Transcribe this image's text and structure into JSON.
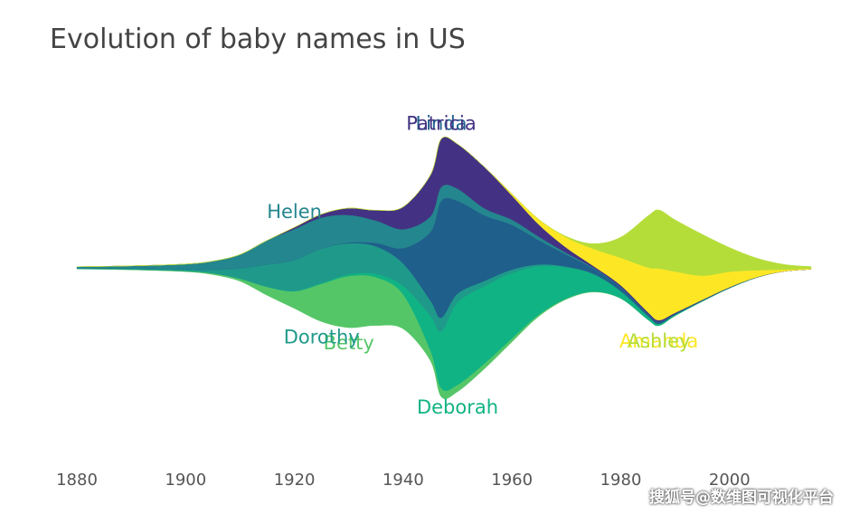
{
  "watermark": "搜狐号@数维图可视化平台",
  "chart_data": {
    "type": "area",
    "subtype": "streamgraph",
    "title": "Evolution of baby names in US",
    "xlabel": "",
    "ylabel": "",
    "x_ticks": [
      1880,
      1900,
      1920,
      1940,
      1960,
      1980,
      2000
    ],
    "xlim": [
      1880,
      2015
    ],
    "x": [
      1880,
      1890,
      1900,
      1905,
      1910,
      1915,
      1920,
      1925,
      1930,
      1935,
      1940,
      1945,
      1947,
      1950,
      1955,
      1960,
      1965,
      1970,
      1975,
      1980,
      1985,
      1987,
      1990,
      1995,
      2000,
      2005,
      2010,
      2015
    ],
    "series": [
      {
        "name": "Betty",
        "color": "#55c667",
        "label_pos": "below",
        "values": [
          0.2,
          0.3,
          0.4,
          0.8,
          1.5,
          5,
          10,
          22,
          30,
          28,
          20,
          6,
          5,
          4,
          3,
          2,
          1,
          0.5,
          0.3,
          0.2,
          0.1,
          0.1,
          0.1,
          0,
          0,
          0,
          0,
          0
        ]
      },
      {
        "name": "Deborah",
        "color": "#10b383",
        "label_pos": "below",
        "values": [
          0,
          0,
          0,
          0,
          0,
          0,
          0.2,
          0.5,
          1,
          2,
          5,
          20,
          33,
          48,
          45,
          38,
          28,
          18,
          10,
          4,
          2,
          1,
          0.5,
          0.3,
          0.2,
          0.1,
          0,
          0
        ]
      },
      {
        "name": "Dorothy",
        "color": "#1f9a8a",
        "label_pos": "below",
        "values": [
          0.3,
          0.5,
          1,
          2,
          6,
          13,
          18,
          20,
          18,
          16,
          13,
          9,
          8,
          5,
          3,
          2,
          1,
          0.5,
          0.3,
          0.2,
          0.1,
          0.1,
          0.1,
          0,
          0,
          0,
          0,
          0
        ]
      },
      {
        "name": "Linda",
        "color": "#1f5f8b",
        "label_pos": "above",
        "values": [
          0,
          0,
          0,
          0,
          0,
          0,
          0,
          0,
          0.5,
          2,
          9,
          40,
          68,
          54,
          38,
          26,
          14,
          7,
          3,
          2,
          1,
          1,
          0.5,
          0.3,
          0.2,
          0.1,
          0,
          0
        ]
      },
      {
        "name": "Helen",
        "color": "#24868e",
        "label_pos": "above",
        "values": [
          0.8,
          1.5,
          3,
          5,
          8,
          14,
          18,
          18,
          16,
          13,
          11,
          9,
          8,
          7,
          4,
          3,
          2,
          1,
          0.5,
          0.3,
          0.2,
          0.1,
          0.1,
          0,
          0,
          0,
          0,
          0
        ]
      },
      {
        "name": "Patricia",
        "color": "#433283",
        "label_pos": "above",
        "values": [
          0,
          0,
          0,
          0,
          0,
          0,
          1,
          2,
          4,
          6,
          13,
          24,
          28,
          26,
          24,
          14,
          7,
          3,
          1,
          1,
          1,
          1,
          0.5,
          0.3,
          0.2,
          0.1,
          0,
          0
        ]
      },
      {
        "name": "Amanda",
        "color": "#fde725",
        "label_pos": "below",
        "values": [
          0,
          0,
          0,
          0,
          0,
          0,
          0,
          0,
          0,
          0,
          0,
          0,
          0,
          0,
          0,
          1,
          3,
          6,
          10,
          16,
          26,
          30,
          24,
          14,
          9,
          4,
          1,
          0.5
        ]
      },
      {
        "name": "Ashley",
        "color": "#b5dd3a",
        "label_pos": "below",
        "values": [
          0,
          0,
          0,
          0,
          0,
          0,
          0,
          0,
          0,
          0,
          0,
          0,
          0,
          0,
          0,
          0,
          0,
          0.5,
          3,
          12,
          30,
          34,
          30,
          24,
          14,
          7,
          3,
          1
        ]
      }
    ],
    "grid": false,
    "legend": "inline labels"
  }
}
